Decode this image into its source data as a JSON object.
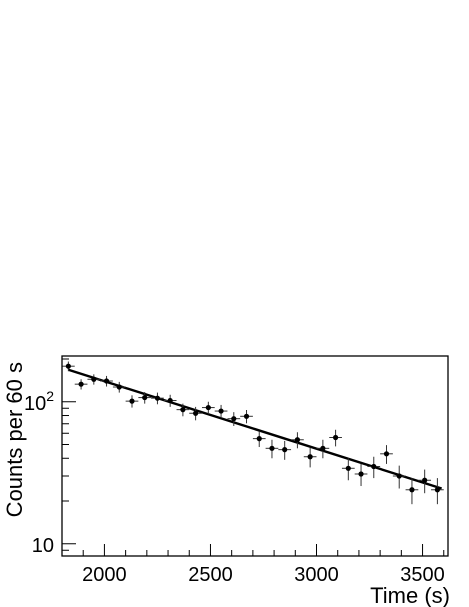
{
  "chart_data": {
    "type": "scatter",
    "title": "",
    "xlabel": "Time (s)",
    "ylabel": "Counts per 60 s",
    "xlim": [
      1800,
      3620
    ],
    "ylim": [
      8.2,
      210
    ],
    "yscale": "log",
    "grid": false,
    "legend": "none",
    "x_ticks": [
      2000,
      2500,
      3000,
      3500
    ],
    "x_tick_labels": [
      "2000",
      "2500",
      "3000",
      "3500"
    ],
    "y_ticks": [
      10,
      100
    ],
    "y_tick_labels": [
      {
        "base": "10",
        "exp": ""
      },
      {
        "base": "10",
        "exp": "2"
      }
    ],
    "x_error_half_width": 30,
    "series": [
      {
        "marker": "circle",
        "color": "#000000",
        "points": [
          {
            "x": 1830,
            "y": 178,
            "yerr": 14
          },
          {
            "x": 1890,
            "y": 133,
            "yerr": 11
          },
          {
            "x": 1950,
            "y": 144,
            "yerr": 12
          },
          {
            "x": 2010,
            "y": 140,
            "yerr": 12
          },
          {
            "x": 2070,
            "y": 127,
            "yerr": 11
          },
          {
            "x": 2130,
            "y": 101,
            "yerr": 10
          },
          {
            "x": 2190,
            "y": 107,
            "yerr": 10
          },
          {
            "x": 2250,
            "y": 106,
            "yerr": 10
          },
          {
            "x": 2310,
            "y": 102,
            "yerr": 10
          },
          {
            "x": 2370,
            "y": 88,
            "yerr": 9
          },
          {
            "x": 2430,
            "y": 83,
            "yerr": 9
          },
          {
            "x": 2490,
            "y": 91,
            "yerr": 9
          },
          {
            "x": 2550,
            "y": 86,
            "yerr": 9
          },
          {
            "x": 2610,
            "y": 76,
            "yerr": 8.5
          },
          {
            "x": 2670,
            "y": 79,
            "yerr": 8.5
          },
          {
            "x": 2730,
            "y": 55,
            "yerr": 7
          },
          {
            "x": 2790,
            "y": 47,
            "yerr": 7
          },
          {
            "x": 2850,
            "y": 46,
            "yerr": 7
          },
          {
            "x": 2910,
            "y": 54,
            "yerr": 7
          },
          {
            "x": 2970,
            "y": 41,
            "yerr": 6.5
          },
          {
            "x": 3030,
            "y": 47,
            "yerr": 7
          },
          {
            "x": 3090,
            "y": 56,
            "yerr": 7.5
          },
          {
            "x": 3150,
            "y": 34,
            "yerr": 6
          },
          {
            "x": 3210,
            "y": 31,
            "yerr": 5.5
          },
          {
            "x": 3270,
            "y": 35,
            "yerr": 6
          },
          {
            "x": 3330,
            "y": 43,
            "yerr": 6.5
          },
          {
            "x": 3390,
            "y": 30,
            "yerr": 5.5
          },
          {
            "x": 3450,
            "y": 24,
            "yerr": 5
          },
          {
            "x": 3510,
            "y": 28,
            "yerr": 5.3
          },
          {
            "x": 3570,
            "y": 24,
            "yerr": 5
          }
        ]
      }
    ],
    "fit_line": {
      "type": "exponential",
      "x": [
        1830,
        3590
      ],
      "y": [
        168,
        24.5
      ],
      "color": "#000000"
    }
  }
}
